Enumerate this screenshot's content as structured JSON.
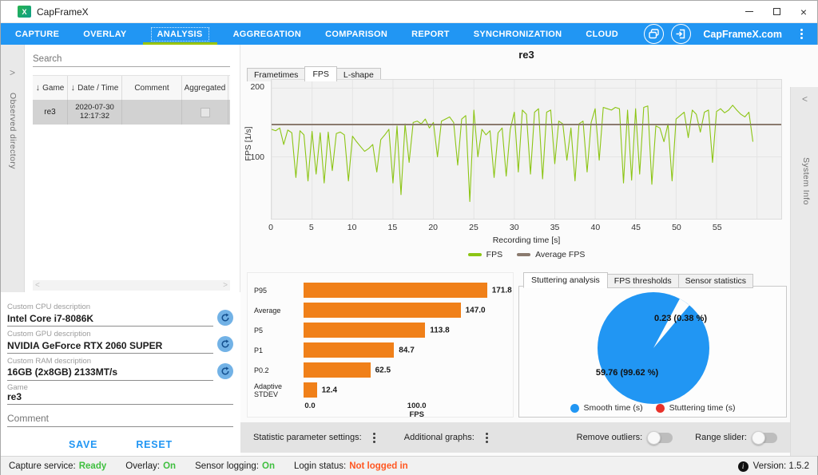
{
  "window": {
    "title": "CapFrameX"
  },
  "icons": {
    "app_logo": "X",
    "minimize": "minimize-line",
    "maximize": "maximize-box",
    "close": "×",
    "chevron_right": ">",
    "chevron_left": "<",
    "sort_desc": "↓",
    "kebab": "vertical-ellipsis",
    "info": "i",
    "refresh": "refresh-arrows",
    "screenshot_gallery": "overlapping-frames",
    "login": "arrow-into-bracket"
  },
  "nav": {
    "tabs": [
      "CAPTURE",
      "OVERLAY",
      "ANALYSIS",
      "AGGREGATION",
      "COMPARISON",
      "REPORT",
      "SYNCHRONIZATION",
      "CLOUD"
    ],
    "active_tab": "ANALYSIS",
    "website_label": "CapFrameX.com"
  },
  "left_panel": {
    "rail_label": "Observed directory",
    "search_placeholder": "Search",
    "table": {
      "columns": [
        "Game",
        "Date / Time",
        "Comment",
        "Aggregated"
      ],
      "rows": [
        {
          "game": "re3",
          "date": "2020-07-30",
          "time": "12:17:32",
          "comment": "",
          "aggregated": false
        }
      ]
    }
  },
  "form": {
    "cpu_label": "Custom CPU description",
    "cpu_value": "Intel Core i7-8086K",
    "gpu_label": "Custom GPU description",
    "gpu_value": "NVIDIA GeForce RTX 2060 SUPER",
    "ram_label": "Custom RAM description",
    "ram_value": "16GB (2x8GB) 2133MT/s",
    "game_label": "Game",
    "game_value": "re3",
    "comment_placeholder": "Comment",
    "save_label": "SAVE",
    "reset_label": "RESET"
  },
  "main": {
    "record_title": "re3",
    "chart_tabs": [
      "Frametimes",
      "FPS",
      "L-shape"
    ],
    "active_chart_tab": "FPS",
    "analysis_tabs": [
      "Stuttering analysis",
      "FPS thresholds",
      "Sensor statistics"
    ],
    "active_analysis_tab": "Stuttering analysis"
  },
  "toolbar": {
    "statistic_settings_label": "Statistic parameter settings:",
    "additional_graphs_label": "Additional graphs:",
    "remove_outliers_label": "Remove outliers:",
    "remove_outliers_on": false,
    "range_slider_label": "Range slider:",
    "range_slider_on": false
  },
  "right_panel": {
    "rail_label": "System Info"
  },
  "status_bar": {
    "items": [
      {
        "label": "Capture service:",
        "value": "Ready",
        "color": "#3fbf3f"
      },
      {
        "label": "Overlay:",
        "value": "On",
        "color": "#3fbf3f"
      },
      {
        "label": "Sensor logging:",
        "value": "On",
        "color": "#3fbf3f"
      },
      {
        "label": "Login status:",
        "value": "Not logged in",
        "color": "#ff5722"
      }
    ],
    "version_label": "Version: 1.5.2"
  },
  "chart_data": [
    {
      "type": "line",
      "title": "re3",
      "xlabel": "Recording time [s]",
      "ylabel": "FPS [1/s]",
      "xlim": [
        0,
        63
      ],
      "ylim": [
        10,
        212
      ],
      "xticks": [
        0,
        5,
        10,
        15,
        20,
        25,
        30,
        35,
        40,
        45,
        50,
        55
      ],
      "yticks": [
        100,
        200
      ],
      "grid": true,
      "legend_position": "bottom",
      "series": [
        {
          "name": "FPS",
          "color": "#8cc514",
          "dt": 0.5,
          "values": [
            140,
            138,
            142,
            118,
            139,
            135,
            70,
            138,
            132,
            65,
            137,
            75,
            135,
            62,
            136,
            80,
            134,
            136,
            132,
            65,
            130,
            122,
            115,
            108,
            112,
            118,
            78,
            125,
            132,
            140,
            62,
            145,
            45,
            148,
            92,
            150,
            152,
            148,
            155,
            142,
            150,
            100,
            152,
            155,
            158,
            150,
            88,
            155,
            160,
            35,
            168,
            100,
            140,
            132,
            138,
            70,
            135,
            142,
            72,
            140,
            165,
            78,
            168,
            162,
            75,
            165,
            170,
            68,
            165,
            168,
            90,
            152,
            148,
            95,
            142,
            65,
            148,
            152,
            78,
            150,
            170,
            95,
            172,
            170,
            168,
            172,
            170,
            62,
            168,
            66,
            170,
            75,
            172,
            174,
            60,
            145,
            142,
            122,
            148,
            65,
            155,
            160,
            165,
            128,
            168,
            162,
            136,
            165,
            168,
            92,
            166,
            170,
            164,
            168,
            175,
            168,
            162,
            158,
            165,
            122
          ]
        },
        {
          "name": "Average FPS",
          "color": "#8a7a6e",
          "constant": 147.0
        }
      ]
    },
    {
      "type": "bar",
      "orientation": "horizontal",
      "categories": [
        "P95",
        "Average",
        "P5",
        "P1",
        "P0.2",
        "Adaptive STDEV"
      ],
      "values": [
        171.8,
        147.0,
        113.8,
        84.7,
        62.5,
        12.4
      ],
      "xlabel": "FPS",
      "xticks": [
        0,
        100
      ],
      "xlim": [
        0,
        172
      ],
      "bar_color": "#f08019"
    },
    {
      "type": "pie",
      "slices": [
        {
          "label": "Smooth time (s)",
          "value": 59.76,
          "display": "59.76 (99.62 %)",
          "color": "#2196f3"
        },
        {
          "label": "Stuttering time (s)",
          "value": 0.23,
          "display": "0.23 (0.38 %)",
          "color": "#e8312a"
        }
      ]
    }
  ]
}
